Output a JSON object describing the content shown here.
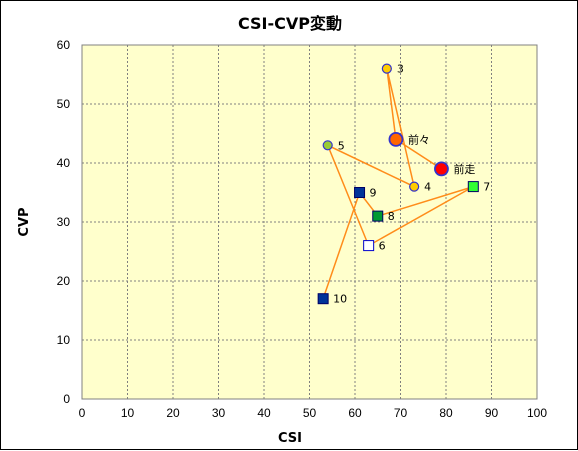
{
  "chart_data": {
    "type": "scatter",
    "title": "CSI-CVP変動",
    "xlabel": "CSI",
    "ylabel": "CVP",
    "xlim": [
      0,
      100
    ],
    "ylim": [
      0,
      60
    ],
    "xticks": [
      0,
      10,
      20,
      30,
      40,
      50,
      60,
      70,
      80,
      90,
      100
    ],
    "yticks": [
      0,
      10,
      20,
      30,
      40,
      50,
      60
    ],
    "grid": true,
    "legend": "none",
    "plot_background": "#ffffcc",
    "grid_color": "#808080",
    "line_color": "#ff8c1a",
    "path_order": [
      "10",
      "9",
      "8",
      "7",
      "6",
      "5",
      "4",
      "3",
      "前々",
      "前走"
    ],
    "points": [
      {
        "label": "前走",
        "x": 79,
        "y": 39,
        "marker": "circle-large",
        "fill": "#ff0000",
        "stroke": "#3333cc"
      },
      {
        "label": "前々",
        "x": 69,
        "y": 44,
        "marker": "circle-large",
        "fill": "#ff6600",
        "stroke": "#3333cc"
      },
      {
        "label": "3",
        "x": 67,
        "y": 56,
        "marker": "circle",
        "fill": "#ffcc00",
        "stroke": "#3333cc"
      },
      {
        "label": "4",
        "x": 73,
        "y": 36,
        "marker": "circle",
        "fill": "#ffcc00",
        "stroke": "#3333cc"
      },
      {
        "label": "5",
        "x": 54,
        "y": 43,
        "marker": "circle",
        "fill": "#99cc33",
        "stroke": "#3333cc"
      },
      {
        "label": "6",
        "x": 63,
        "y": 26,
        "marker": "square",
        "fill": "#ffffff",
        "stroke": "#0000cc"
      },
      {
        "label": "7",
        "x": 86,
        "y": 36,
        "marker": "square",
        "fill": "#33ff33",
        "stroke": "#000066"
      },
      {
        "label": "8",
        "x": 65,
        "y": 31,
        "marker": "square",
        "fill": "#009933",
        "stroke": "#000066"
      },
      {
        "label": "9",
        "x": 61,
        "y": 35,
        "marker": "square",
        "fill": "#003399",
        "stroke": "#000066"
      },
      {
        "label": "10",
        "x": 53,
        "y": 17,
        "marker": "square",
        "fill": "#003399",
        "stroke": "#000066"
      }
    ]
  }
}
